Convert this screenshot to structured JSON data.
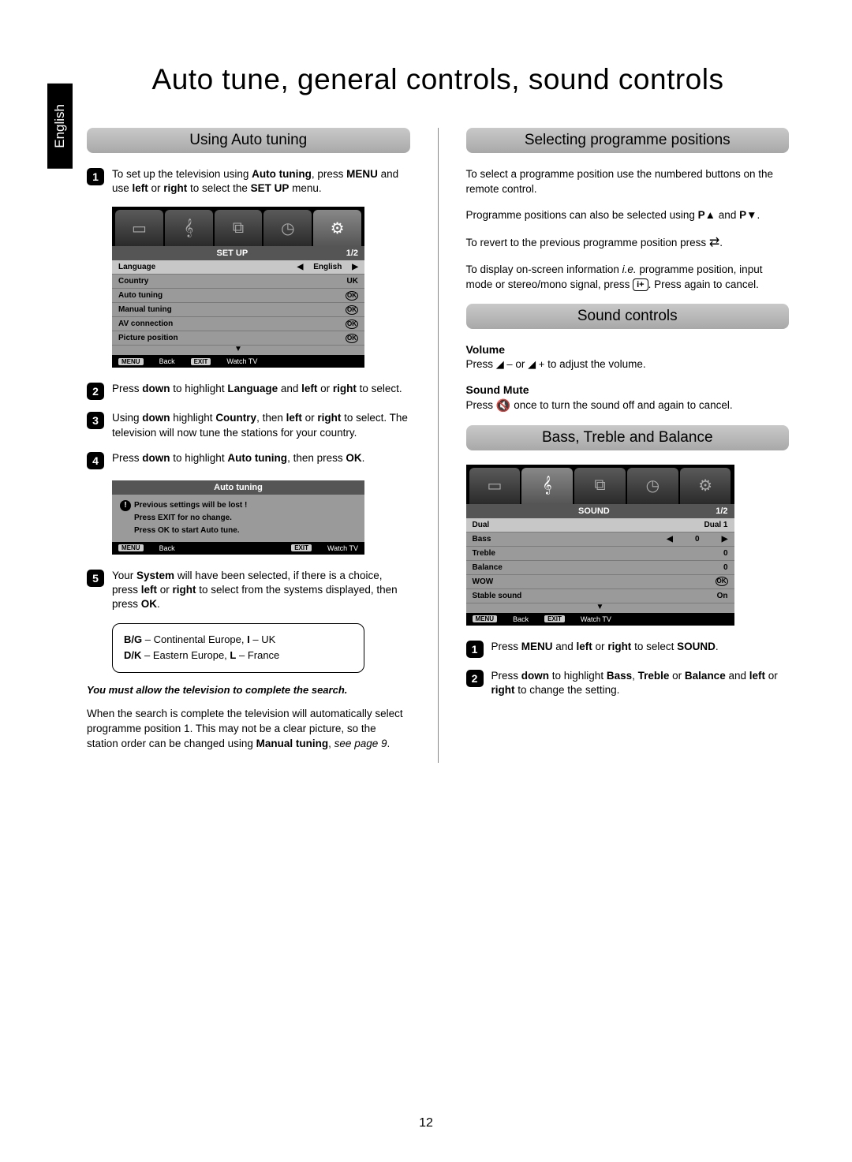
{
  "lang_tab": "English",
  "page_title": "Auto tune, general controls, sound controls",
  "page_number": "12",
  "left": {
    "section1": "Using Auto tuning",
    "step1": "To set up the television using <b>Auto tuning</b>, press <b>MENU</b> and use <b>left</b> or <b>right</b> to select the <b>SET UP</b> menu.",
    "step2": "Press <b>down</b> to highlight <b>Language</b> and <b>left</b> or <b>right</b> to select.",
    "step3": "Using <b>down</b> highlight <b>Country</b>, then <b>left</b> or <b>right</b> to select. The television will now tune the stations for your country.",
    "step4": "Press <b>down</b> to highlight <b>Auto tuning</b>, then press <b>OK</b>.",
    "step5": "Your <b>System</b> will have been selected, if there is a choice, press <b>left</b> or <b>right</b> to select from the systems displayed, then press <b>OK</b>.",
    "sysbox_l1": "<b>B/G</b> – Continental Europe, <b>I</b> – UK",
    "sysbox_l2": "<b>D/K</b> – Eastern Europe, <b>L</b> – France",
    "note": "You must allow the television to complete the search.",
    "closing": "When the search is complete the television will automatically select programme position 1. This may not be a clear picture, so the station order can be changed using <b>Manual tuning</b>, <i>see page 9</i>.",
    "osd_setup": {
      "title": "SET UP",
      "page": "1/2",
      "rows": [
        {
          "label": "Language",
          "val": "English",
          "sel": true,
          "arrows": true
        },
        {
          "label": "Country",
          "val": "UK"
        },
        {
          "label": "Auto tuning",
          "ok": true
        },
        {
          "label": "Manual tuning",
          "ok": true
        },
        {
          "label": "AV connection",
          "ok": true
        },
        {
          "label": "Picture position",
          "ok": true
        }
      ],
      "foot_menu": "MENU",
      "foot_back": "Back",
      "foot_exit": "EXIT",
      "foot_watch": "Watch TV"
    },
    "osd_auto": {
      "title": "Auto tuning",
      "l1": "Previous settings will be lost  !",
      "l2": "Press EXIT for no change.",
      "l3": "Press OK to start Auto tune.",
      "foot_menu": "MENU",
      "foot_back": "Back",
      "foot_exit": "EXIT",
      "foot_watch": "Watch TV"
    }
  },
  "right": {
    "section1": "Selecting programme positions",
    "p1": "To select a programme position use the numbered buttons on the remote control.",
    "p2_a": "Programme positions can also be selected using ",
    "p2_b": " and ",
    "p2_c": ".",
    "p_up": "P▲",
    "p_down": "P▼",
    "p3": "To revert to the previous programme position press ",
    "p4_a": "To display on-screen information <i>i.e.</i> programme position, input mode or stereo/mono signal, press ",
    "p4_b": ". Press again to cancel.",
    "info_btn": "i+",
    "section2": "Sound controls",
    "vol_h": "Volume",
    "vol_t_a": "Press ",
    "vol_t_b": " or ",
    "vol_t_c": " to adjust the volume.",
    "mute_h": "Sound Mute",
    "mute_t_a": "Press ",
    "mute_t_b": " once to turn the sound off and again to cancel.",
    "section3": "Bass, Treble and Balance",
    "step1": "Press <b>MENU</b> and <b>left</b> or <b>right</b> to select <b>SOUND</b>.",
    "step2": "Press <b>down</b> to highlight <b>Bass</b>, <b>Treble</b> or <b>Balance</b> and <b>left</b> or <b>right</b> to change the setting.",
    "osd_sound": {
      "title": "SOUND",
      "page": "1/2",
      "rows": [
        {
          "label": "Dual",
          "val": "Dual 1",
          "sel": true
        },
        {
          "label": "Bass",
          "val": "0",
          "arrows": true
        },
        {
          "label": "Treble",
          "val": "0"
        },
        {
          "label": "Balance",
          "val": "0"
        },
        {
          "label": "WOW",
          "ok": true
        },
        {
          "label": "Stable sound",
          "val": "On"
        }
      ],
      "foot_menu": "MENU",
      "foot_back": "Back",
      "foot_exit": "EXIT",
      "foot_watch": "Watch TV"
    }
  }
}
